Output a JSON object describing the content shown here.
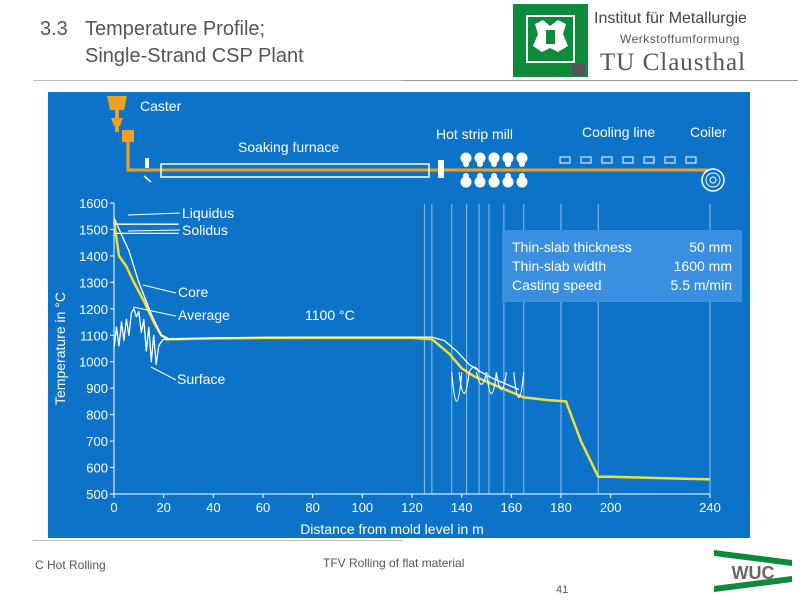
{
  "header": {
    "section_number": "3.3",
    "title_line1": "Temperature Profile;",
    "title_line2": "Single-Strand CSP Plant",
    "institute": "Institut für Metallurgie",
    "department": "Werkstoffumformung",
    "university": "TU Clausthal"
  },
  "diagram": {
    "labels": {
      "caster": "Caster",
      "soaking_furnace": "Soaking furnace",
      "hot_strip_mill": "Hot strip mill",
      "cooling_line": "Cooling line",
      "coiler": "Coiler",
      "liquidus": "Liquidus",
      "solidus": "Solidus",
      "core": "Core",
      "average": "Average",
      "surface": "Surface",
      "temp_1100": "1100 °C"
    },
    "info": {
      "thickness_label": "Thin-slab thickness",
      "thickness_value": "50 mm",
      "width_label": "Thin-slab width",
      "width_value": "1600 mm",
      "speed_label": "Casting speed",
      "speed_value": "5.5 m/min"
    }
  },
  "chart_data": {
    "type": "line",
    "xlabel": "Distance from mold level in m",
    "ylabel": "Temperature in °C",
    "xlim": [
      0,
      240
    ],
    "ylim": [
      500,
      1600
    ],
    "x_ticks": [
      0,
      20,
      40,
      60,
      80,
      100,
      120,
      140,
      160,
      180,
      200,
      240
    ],
    "y_ticks": [
      500,
      600,
      700,
      800,
      900,
      1000,
      1100,
      1200,
      1300,
      1400,
      1500,
      1600
    ],
    "series": [
      {
        "name": "Average",
        "color": "#f0e030",
        "x": [
          0,
          2,
          5,
          8,
          12,
          16,
          19,
          22,
          40,
          60,
          80,
          100,
          120,
          128,
          130,
          135,
          140,
          145,
          150,
          155,
          160,
          165,
          175,
          182,
          188,
          195,
          200,
          220,
          240
        ],
        "y": [
          1530,
          1400,
          1360,
          1300,
          1230,
          1150,
          1100,
          1085,
          1088,
          1090,
          1090,
          1090,
          1090,
          1085,
          1070,
          1030,
          975,
          945,
          925,
          905,
          885,
          865,
          855,
          850,
          700,
          565,
          565,
          560,
          555
        ]
      },
      {
        "name": "Core",
        "color": "#ffffff",
        "x": [
          0,
          3,
          6,
          10,
          15,
          19,
          22,
          40,
          60,
          80,
          100,
          120,
          128,
          133,
          138,
          143,
          148,
          153,
          158,
          163
        ],
        "y": [
          1545,
          1480,
          1420,
          1300,
          1180,
          1100,
          1085,
          1090,
          1092,
          1093,
          1093,
          1093,
          1093,
          1080,
          1040,
          990,
          960,
          935,
          915,
          895
        ]
      },
      {
        "name": "Surface",
        "color": "#ffffff",
        "x": [
          0,
          1,
          2,
          3,
          4,
          5,
          6,
          7,
          8,
          9,
          10,
          11,
          12,
          13,
          14,
          15,
          16,
          17,
          18,
          19,
          20,
          22
        ],
        "y": [
          1050,
          1130,
          1060,
          1150,
          1080,
          1160,
          1100,
          1185,
          1200,
          1170,
          1190,
          1110,
          1160,
          1040,
          1130,
          1000,
          1100,
          990,
          1060,
          1075,
          1085,
          1082
        ]
      },
      {
        "name": "Liquidus",
        "color": "#ffffff",
        "x": [
          0,
          26
        ],
        "y": [
          1520,
          1520
        ]
      },
      {
        "name": "Solidus",
        "color": "#ffffff",
        "x": [
          0,
          26
        ],
        "y": [
          1485,
          1485
        ]
      }
    ]
  },
  "footer": {
    "left": "C Hot Rolling",
    "center": "TFV Rolling of flat material",
    "page": "41",
    "logo_text": "WUC"
  },
  "colors": {
    "panel": "#0d73c9",
    "info_box": "#3a8fe0",
    "process_line": "#f0a020",
    "average_curve": "#f0e030",
    "logo_green": "#0d8a3a"
  }
}
